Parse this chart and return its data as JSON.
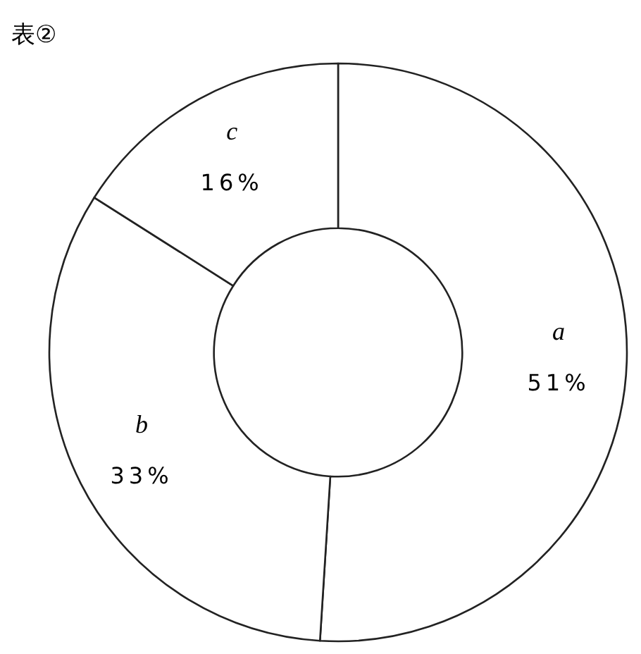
{
  "chart_data": {
    "type": "donut",
    "title": "表②",
    "categories": [
      "a",
      "b",
      "c"
    ],
    "values": [
      51,
      33,
      16
    ],
    "colors": [
      "#ffffff",
      "#ffffff",
      "#ffffff"
    ],
    "value_labels": [
      "51%",
      "33%",
      "16%"
    ]
  }
}
